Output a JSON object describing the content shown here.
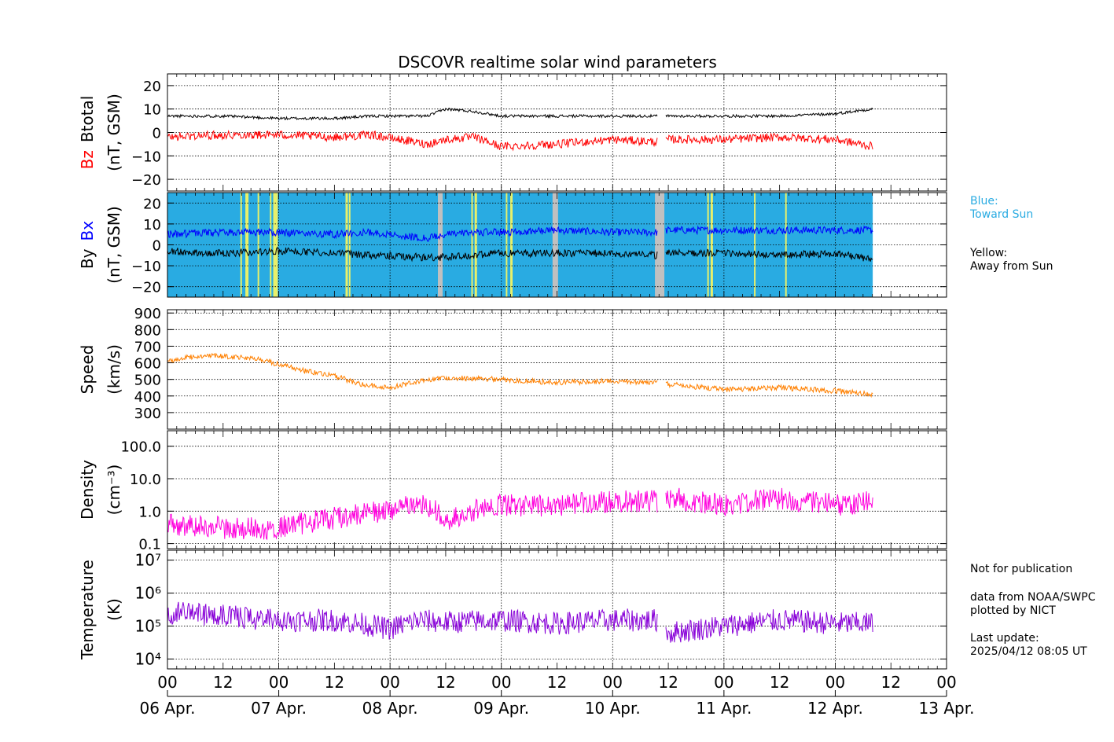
{
  "chart_data": {
    "type": "line",
    "title": "DSCOVR realtime solar wind parameters",
    "x_start": "2025-04-06T00:00",
    "x_end": "2025-04-13T00:00",
    "x_hour_ticks": [
      "00",
      "12",
      "00",
      "12",
      "00",
      "12",
      "00",
      "12",
      "00",
      "12",
      "00",
      "12",
      "00",
      "12",
      "00"
    ],
    "x_date_labels": [
      "06 Apr.",
      "07 Apr.",
      "08 Apr.",
      "09 Apr.",
      "10 Apr.",
      "11 Apr.",
      "12 Apr.",
      "13 Apr."
    ],
    "data_end": "2025-04-12T08:05",
    "gaps": [
      [
        "2025-04-10T09:40",
        "2025-04-10T11:20"
      ]
    ],
    "panels": [
      {
        "id": "btotal-bz",
        "ylabel_parts": [
          "Bz",
          "Btotal"
        ],
        "ylabel_colors": [
          "#ff0000",
          "#000000"
        ],
        "yunit": "(nT, GSM)",
        "ylim": [
          -25,
          25
        ],
        "yticks": [
          "20",
          "10",
          "0",
          "−10",
          "−20"
        ],
        "ytick_values": [
          20,
          10,
          0,
          -10,
          -20
        ],
        "series": [
          {
            "color": "#000000",
            "x": [
              "2025-04-06T00:00",
              "2025-04-06T12:00",
              "2025-04-07T00:00",
              "2025-04-07T12:00",
              "2025-04-07T20:00",
              "2025-04-08T08:00",
              "2025-04-08T12:00",
              "2025-04-08T18:00",
              "2025-04-09T00:00",
              "2025-04-09T12:00",
              "2025-04-10T00:00",
              "2025-04-10T09:30",
              "2025-04-10T12:00",
              "2025-04-11T00:00",
              "2025-04-11T12:00",
              "2025-04-12T00:00",
              "2025-04-12T08:00"
            ],
            "y": [
              7,
              7,
              6,
              6,
              7,
              7,
              10,
              9,
              7,
              7,
              7,
              7,
              7,
              7,
              7,
              8,
              10
            ]
          },
          {
            "color": "#ff0000",
            "x": [
              "2025-04-06T00:00",
              "2025-04-06T12:00",
              "2025-04-07T00:00",
              "2025-04-07T12:00",
              "2025-04-07T20:00",
              "2025-04-08T08:00",
              "2025-04-08T12:00",
              "2025-04-08T18:00",
              "2025-04-09T00:00",
              "2025-04-09T12:00",
              "2025-04-10T00:00",
              "2025-04-10T09:30",
              "2025-04-10T12:00",
              "2025-04-11T00:00",
              "2025-04-11T12:00",
              "2025-04-12T00:00",
              "2025-04-12T08:00"
            ],
            "y": [
              -2,
              -1,
              -1,
              -2,
              -1,
              -5,
              -3,
              -2,
              -6,
              -5,
              -3,
              -4,
              -3,
              -3,
              -2,
              -3,
              -6
            ]
          }
        ]
      },
      {
        "id": "by-bx",
        "ylabel_parts": [
          "By",
          "Bx"
        ],
        "ylabel_colors": [
          "#000000",
          "#0000ff"
        ],
        "yunit": "(nT, GSM)",
        "ylim": [
          -25,
          25
        ],
        "yticks": [
          "20",
          "10",
          "0",
          "−10",
          "−20"
        ],
        "ytick_values": [
          20,
          10,
          0,
          -10,
          -20
        ],
        "background_color": "#29abe2",
        "series": [
          {
            "color": "#0000ff",
            "x": [
              "2025-04-06T00:00",
              "2025-04-06T12:00",
              "2025-04-07T00:00",
              "2025-04-07T12:00",
              "2025-04-07T20:00",
              "2025-04-08T08:00",
              "2025-04-08T12:00",
              "2025-04-08T18:00",
              "2025-04-09T00:00",
              "2025-04-09T12:00",
              "2025-04-10T00:00",
              "2025-04-10T09:30",
              "2025-04-10T12:00",
              "2025-04-11T00:00",
              "2025-04-11T12:00",
              "2025-04-12T00:00",
              "2025-04-12T08:00"
            ],
            "y": [
              5,
              6,
              6,
              5,
              6,
              3,
              5,
              6,
              6,
              7,
              6,
              6,
              7,
              7,
              7,
              7,
              7
            ]
          },
          {
            "color": "#000000",
            "x": [
              "2025-04-06T00:00",
              "2025-04-06T12:00",
              "2025-04-07T00:00",
              "2025-04-07T12:00",
              "2025-04-07T20:00",
              "2025-04-08T08:00",
              "2025-04-08T12:00",
              "2025-04-08T18:00",
              "2025-04-09T00:00",
              "2025-04-09T12:00",
              "2025-04-10T00:00",
              "2025-04-10T09:30",
              "2025-04-10T12:00",
              "2025-04-11T00:00",
              "2025-04-11T12:00",
              "2025-04-12T00:00",
              "2025-04-12T08:00"
            ],
            "y": [
              -3,
              -4,
              -3,
              -4,
              -5,
              -6,
              -6,
              -5,
              -4,
              -4,
              -4,
              -5,
              -4,
              -4,
              -5,
              -4,
              -7
            ]
          }
        ]
      },
      {
        "id": "speed",
        "ylabel_parts": [
          "Speed"
        ],
        "ylabel_colors": [
          "#000000"
        ],
        "yunit": "(km/s)",
        "ylim": [
          200,
          920
        ],
        "yticks": [
          "900",
          "800",
          "700",
          "600",
          "500",
          "400",
          "300"
        ],
        "ytick_values": [
          900,
          800,
          700,
          600,
          500,
          400,
          300
        ],
        "series": [
          {
            "color": "#ff8000",
            "x": [
              "2025-04-06T00:00",
              "2025-04-06T06:00",
              "2025-04-06T12:00",
              "2025-04-06T18:00",
              "2025-04-07T00:00",
              "2025-04-07T06:00",
              "2025-04-07T12:00",
              "2025-04-07T18:00",
              "2025-04-08T00:00",
              "2025-04-08T06:00",
              "2025-04-08T12:00",
              "2025-04-09T00:00",
              "2025-04-09T12:00",
              "2025-04-10T00:00",
              "2025-04-10T09:30",
              "2025-04-10T12:00",
              "2025-04-11T00:00",
              "2025-04-11T12:00",
              "2025-04-12T00:00",
              "2025-04-12T08:00"
            ],
            "y": [
              610,
              640,
              640,
              630,
              590,
              550,
              520,
              470,
              450,
              490,
              510,
              500,
              480,
              490,
              480,
              470,
              440,
              450,
              430,
              410
            ]
          }
        ]
      },
      {
        "id": "density",
        "ylabel_parts": [
          "Density"
        ],
        "ylabel_colors": [
          "#000000"
        ],
        "yunit": "(cm⁻³)",
        "yscale": "log",
        "ylim": [
          0.07,
          300
        ],
        "yticks": [
          "100.0",
          "10.0",
          "1.0",
          "0.1"
        ],
        "ytick_values": [
          100,
          10,
          1,
          0.1
        ],
        "series": [
          {
            "color": "#ff00dd",
            "x": [
              "2025-04-06T00:00",
              "2025-04-06T12:00",
              "2025-04-07T00:00",
              "2025-04-07T12:00",
              "2025-04-08T00:00",
              "2025-04-08T06:00",
              "2025-04-08T12:00",
              "2025-04-09T00:00",
              "2025-04-09T12:00",
              "2025-04-10T00:00",
              "2025-04-10T09:30",
              "2025-04-10T12:00",
              "2025-04-11T00:00",
              "2025-04-11T12:00",
              "2025-04-12T00:00",
              "2025-04-12T08:00"
            ],
            "y": [
              0.4,
              0.3,
              0.3,
              0.6,
              1.0,
              2.0,
              0.5,
              1.5,
              1.5,
              2.0,
              2.0,
              2.5,
              1.5,
              2.5,
              1.5,
              2.0
            ]
          }
        ]
      },
      {
        "id": "temperature",
        "ylabel_parts": [
          "Temperature"
        ],
        "ylabel_colors": [
          "#000000"
        ],
        "yunit": "(K)",
        "yscale": "log",
        "ylim": [
          5000,
          20000000
        ],
        "yticks": [
          "10⁷",
          "10⁶",
          "10⁵",
          "10⁴"
        ],
        "ytick_values": [
          10000000,
          1000000,
          100000,
          10000
        ],
        "series": [
          {
            "color": "#8800d8",
            "x": [
              "2025-04-06T00:00",
              "2025-04-06T12:00",
              "2025-04-07T00:00",
              "2025-04-07T12:00",
              "2025-04-08T00:00",
              "2025-04-08T06:00",
              "2025-04-08T12:00",
              "2025-04-09T00:00",
              "2025-04-09T12:00",
              "2025-04-10T00:00",
              "2025-04-10T09:30",
              "2025-04-10T12:00",
              "2025-04-11T00:00",
              "2025-04-11T12:00",
              "2025-04-12T00:00",
              "2025-04-12T08:00"
            ],
            "y": [
              250000,
              200000,
              150000,
              150000,
              80000,
              150000,
              130000,
              150000,
              120000,
              150000,
              150000,
              60000,
              100000,
              150000,
              120000,
              120000
            ]
          }
        ]
      }
    ],
    "imf_sector_legend": [
      {
        "text": "Blue:\nToward Sun",
        "color": "#29abe2"
      },
      {
        "text": "Yellow:\nAway from Sun",
        "color": "#000000"
      }
    ]
  },
  "notes": {
    "publication": "Not for publication",
    "source": "data from NOAA/SWPC\nplotted by NICT",
    "last_update": "Last update:\n2025/04/12 08:05 UT"
  }
}
